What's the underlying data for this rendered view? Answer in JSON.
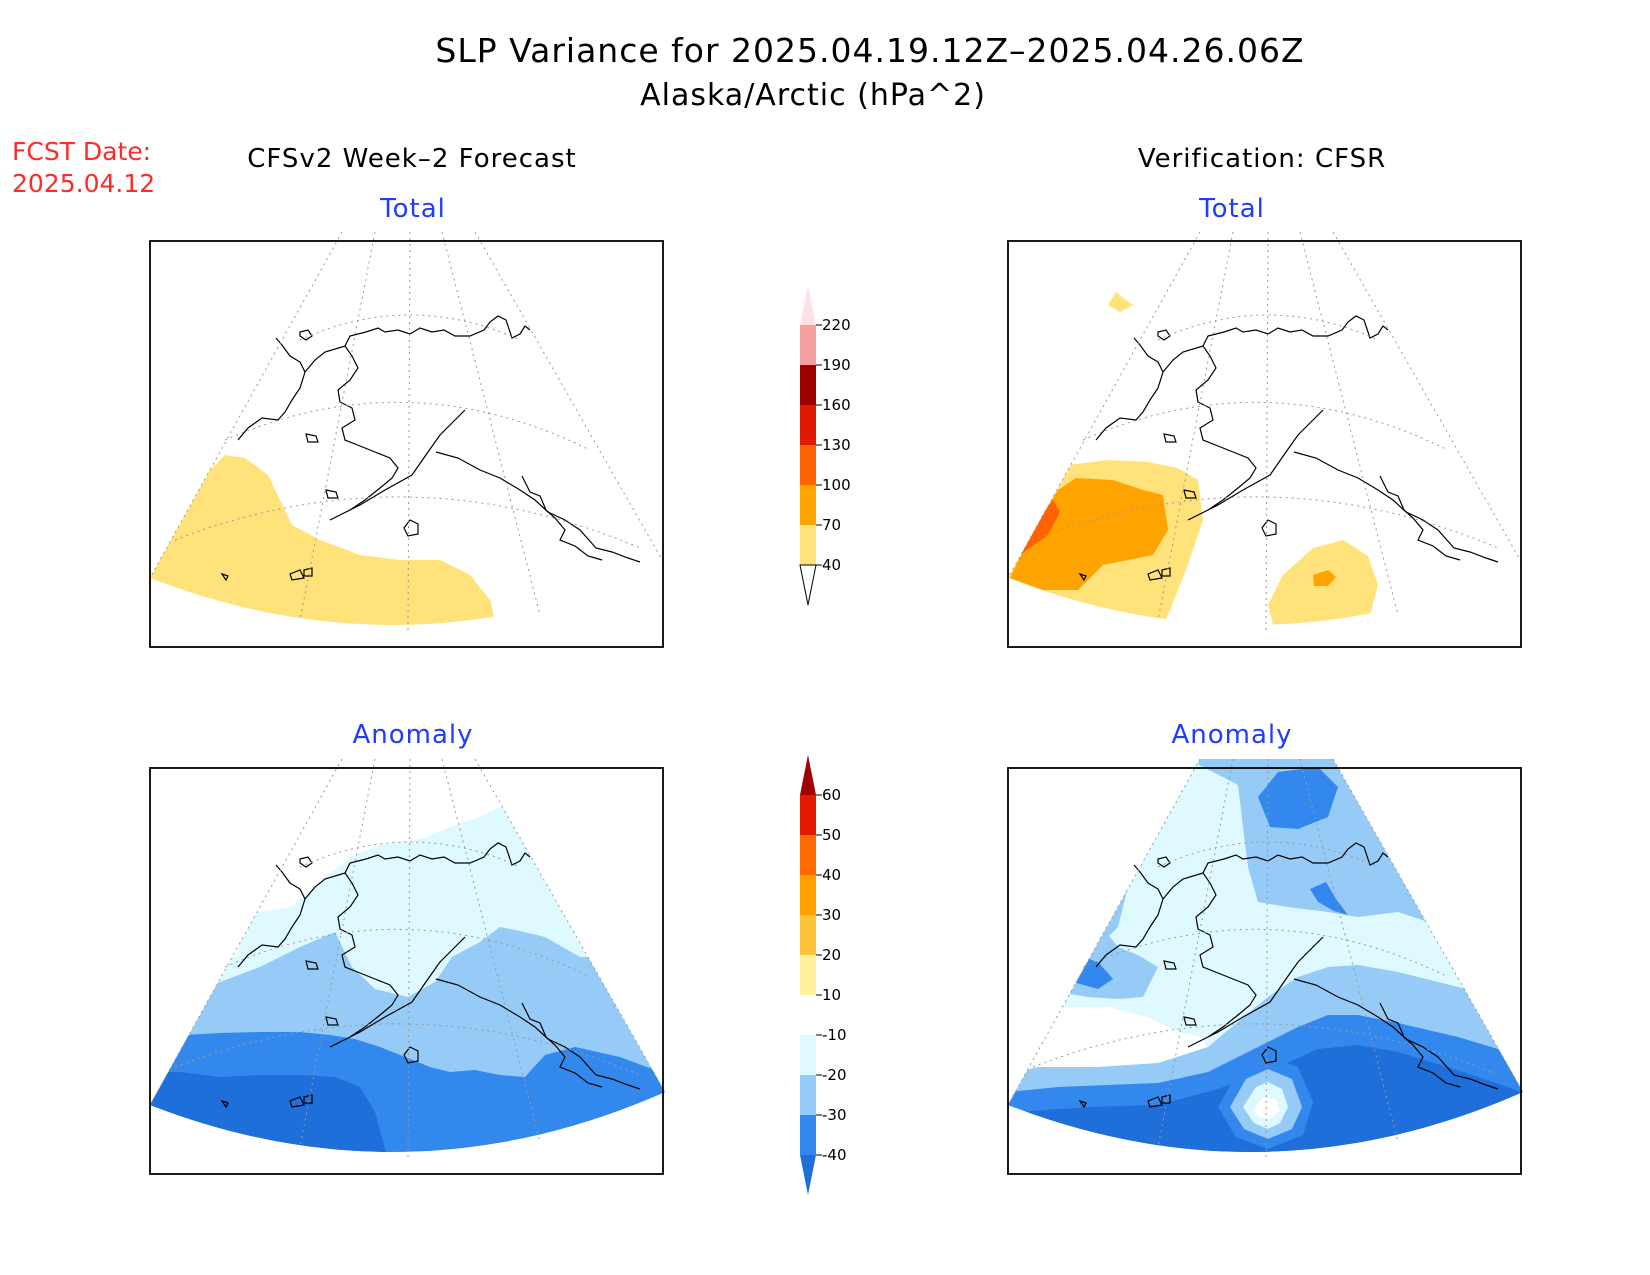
{
  "title": {
    "line1": "SLP Variance for 2025.04.19.12Z–2025.04.26.06Z",
    "line2": "Alaska/Arctic (hPa^2)"
  },
  "fcst": {
    "label": "FCST Date:",
    "date": "2025.04.12"
  },
  "columns": {
    "left": "CFSv2 Week–2 Forecast",
    "right": "Verification: CFSR"
  },
  "panels": {
    "total_left": "Total",
    "total_right": "Total",
    "anom_left": "Anomaly",
    "anom_right": "Anomaly"
  },
  "colorbar_total": {
    "labels": [
      "40",
      "70",
      "100",
      "130",
      "160",
      "190",
      "220"
    ],
    "colors": [
      "#ffe37a",
      "#ffa300",
      "#ff6200",
      "#e01a00",
      "#9e0000",
      "#f5a0a0",
      "#fde3e3"
    ]
  },
  "colorbar_anomaly": {
    "labels": [
      "-40",
      "-30",
      "-20",
      "-10",
      "10",
      "20",
      "30",
      "40",
      "50",
      "60"
    ],
    "colors": [
      "#1e6fd9",
      "#3388ee",
      "#96cbf7",
      "#def9ff",
      "#ffffff",
      "#fff3a0",
      "#ffc33a",
      "#ffa000",
      "#ff6a00",
      "#e41a00",
      "#a00000"
    ]
  },
  "palette": {
    "yellow": "#ffe37a",
    "orange": "#ffa300",
    "dark_orange": "#ff6200",
    "pale_cyan": "#def9ff",
    "light_blue": "#96cbf7",
    "medium_blue": "#3388ee",
    "dark_blue": "#1e6fd9",
    "light_yellow": "#fff3a0",
    "title_red": "#ff2a2a",
    "subtitle_blue": "#1f3cff"
  }
}
